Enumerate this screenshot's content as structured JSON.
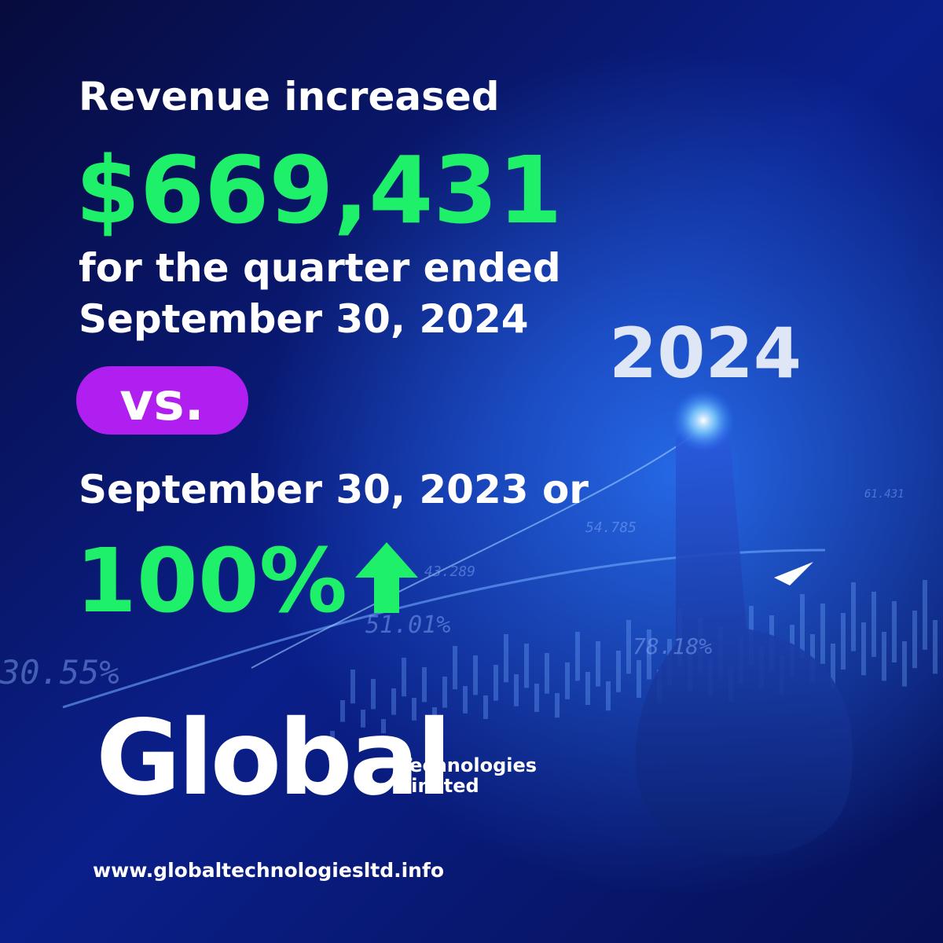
{
  "headline": {
    "line1": "Revenue increased",
    "amount": "$669,431",
    "line2": "for the quarter ended",
    "line3": "September 30, 2024",
    "vs": "vs.",
    "line4": "September 30, 2023 or",
    "percent": "100%"
  },
  "logo": {
    "name": "Global",
    "sub1": "Technologies",
    "sub2": "Limited"
  },
  "website": "www.globaltechnologiesltd.info",
  "background": {
    "year": "2024",
    "tickers": [
      "54.785",
      "43.289",
      "51.01%",
      "78.18%",
      "30.55%",
      "61.431"
    ]
  }
}
